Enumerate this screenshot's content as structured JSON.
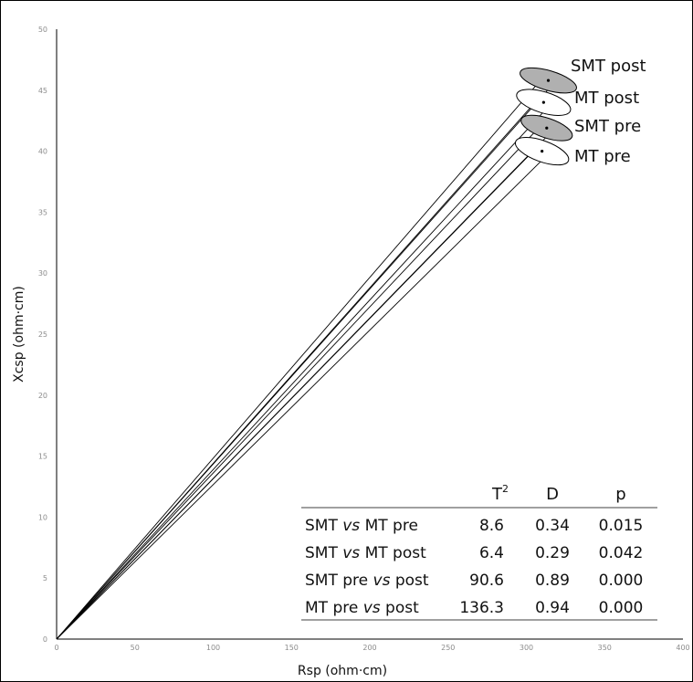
{
  "chart_data": {
    "type": "scatter",
    "title": "",
    "xlabel": "Rsp (ohm·cm)",
    "ylabel": "Xcsp (ohm·cm)",
    "xlim": [
      0,
      400
    ],
    "ylim": [
      0,
      50
    ],
    "x_ticks": [
      0,
      50,
      100,
      150,
      200,
      250,
      300,
      350,
      400
    ],
    "y_ticks": [
      0,
      5,
      10,
      15,
      20,
      25,
      30,
      35,
      40,
      45,
      50
    ],
    "x_tick_labels": [
      "0",
      "50",
      "100",
      "150",
      "200",
      "250",
      "300",
      "350",
      "400"
    ],
    "y_tick_labels": [
      "0",
      "5",
      "10",
      "15",
      "20",
      "25",
      "30",
      "35",
      "40",
      "45",
      "50"
    ],
    "grid": false,
    "series": [
      {
        "name": "SMT post",
        "x": 314,
        "y": 45.8,
        "ellipse_rx": 4.5,
        "ellipse_ry": 2.4,
        "filled": true
      },
      {
        "name": "MT post",
        "x": 311,
        "y": 44.0,
        "ellipse_rx": 4.8,
        "ellipse_ry": 2.3,
        "filled": false
      },
      {
        "name": "SMT pre",
        "x": 313,
        "y": 41.9,
        "ellipse_rx": 4.5,
        "ellipse_ry": 2.2,
        "filled": true
      },
      {
        "name": "MT pre",
        "x": 310,
        "y": 40.0,
        "ellipse_rx": 4.8,
        "ellipse_ry": 2.3,
        "filled": false
      }
    ],
    "table": {
      "headers": [
        "",
        "T",
        "D",
        "p"
      ],
      "header_superscript": "2",
      "rows": [
        {
          "label_a": "SMT ",
          "label_vs": "vs",
          "label_b": " MT pre",
          "T2": "8.6",
          "D": "0.34",
          "p": "0.015"
        },
        {
          "label_a": "SMT ",
          "label_vs": "vs",
          "label_b": " MT post",
          "T2": "6.4",
          "D": "0.29",
          "p": "0.042"
        },
        {
          "label_a": "SMT pre ",
          "label_vs": "vs",
          "label_b": " post",
          "T2": "90.6",
          "D": "0.89",
          "p": "0.000"
        },
        {
          "label_a": "MT pre ",
          "label_vs": "vs",
          "label_b": " post",
          "T2": "136.3",
          "D": "0.94",
          "p": "0.000"
        }
      ]
    }
  },
  "colors": {
    "axis": "#000000",
    "tick_label": "#8c8c8c",
    "ellipse_fill": "#b0b0b0",
    "line": "#000000"
  }
}
